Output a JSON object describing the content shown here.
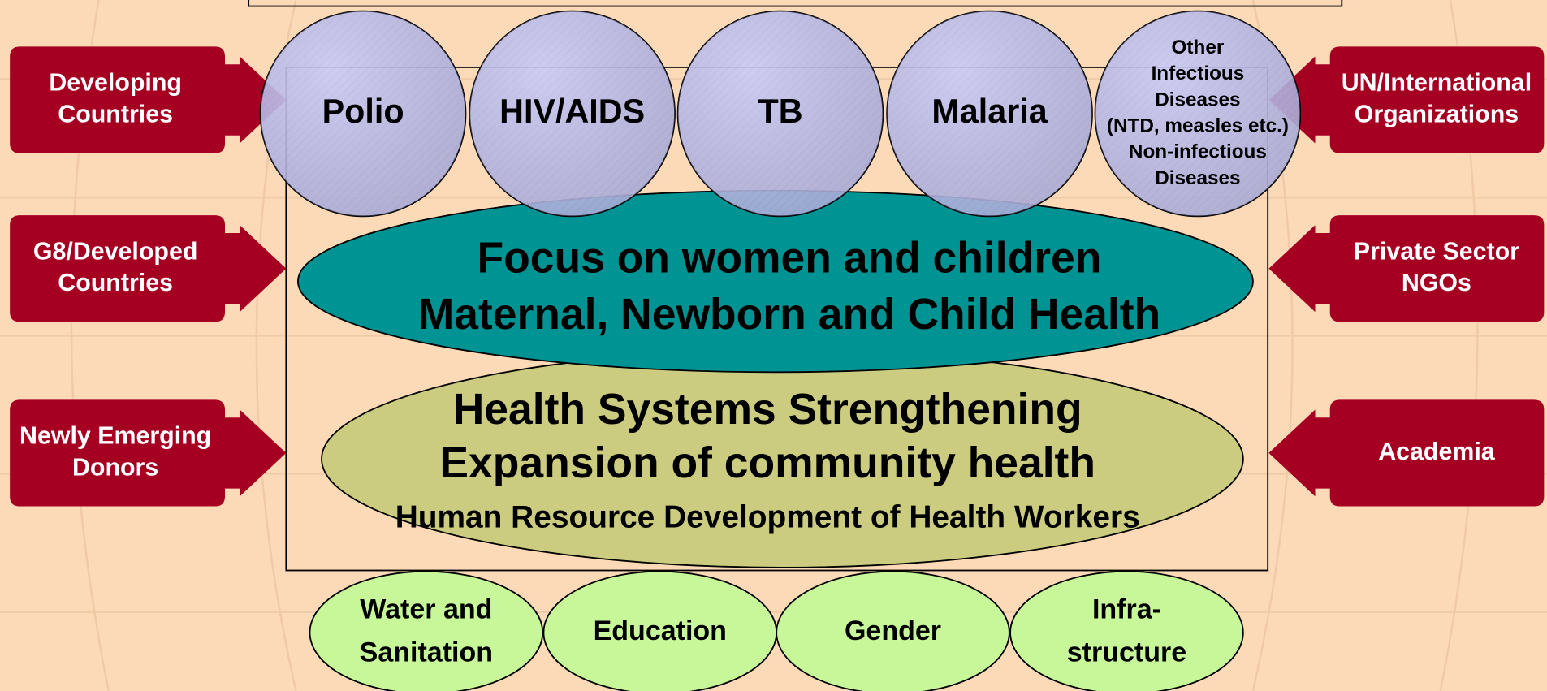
{
  "left_actors": [
    {
      "lines": [
        "Developing",
        "Countries"
      ]
    },
    {
      "lines": [
        "G8/Developed",
        "Countries"
      ]
    },
    {
      "lines": [
        "Newly Emerging",
        "Donors"
      ]
    }
  ],
  "right_actors": [
    {
      "lines": [
        "UN/International",
        "Organizations"
      ]
    },
    {
      "lines": [
        "Private Sector",
        "NGOs"
      ]
    },
    {
      "lines": [
        "Academia"
      ]
    }
  ],
  "diseases": [
    {
      "lines": [
        "Polio"
      ]
    },
    {
      "lines": [
        "HIV/AIDS"
      ]
    },
    {
      "lines": [
        "TB"
      ]
    },
    {
      "lines": [
        "Malaria"
      ]
    },
    {
      "lines": [
        "Other",
        "Infectious",
        "Diseases",
        "(NTD, measles etc.)",
        "Non-infectious",
        "Diseases"
      ]
    }
  ],
  "focus": {
    "lines": [
      "Focus on women and children",
      "Maternal, Newborn and Child Health"
    ]
  },
  "health_systems": {
    "lines": [
      "Health Systems Strengthening",
      "Expansion of community health",
      "Human Resource Development of Health Workers"
    ]
  },
  "foundations": [
    {
      "lines": [
        "Water and",
        "Sanitation"
      ]
    },
    {
      "lines": [
        "Education"
      ]
    },
    {
      "lines": [
        "Gender"
      ]
    },
    {
      "lines": [
        "Infra-",
        "structure"
      ]
    }
  ]
}
